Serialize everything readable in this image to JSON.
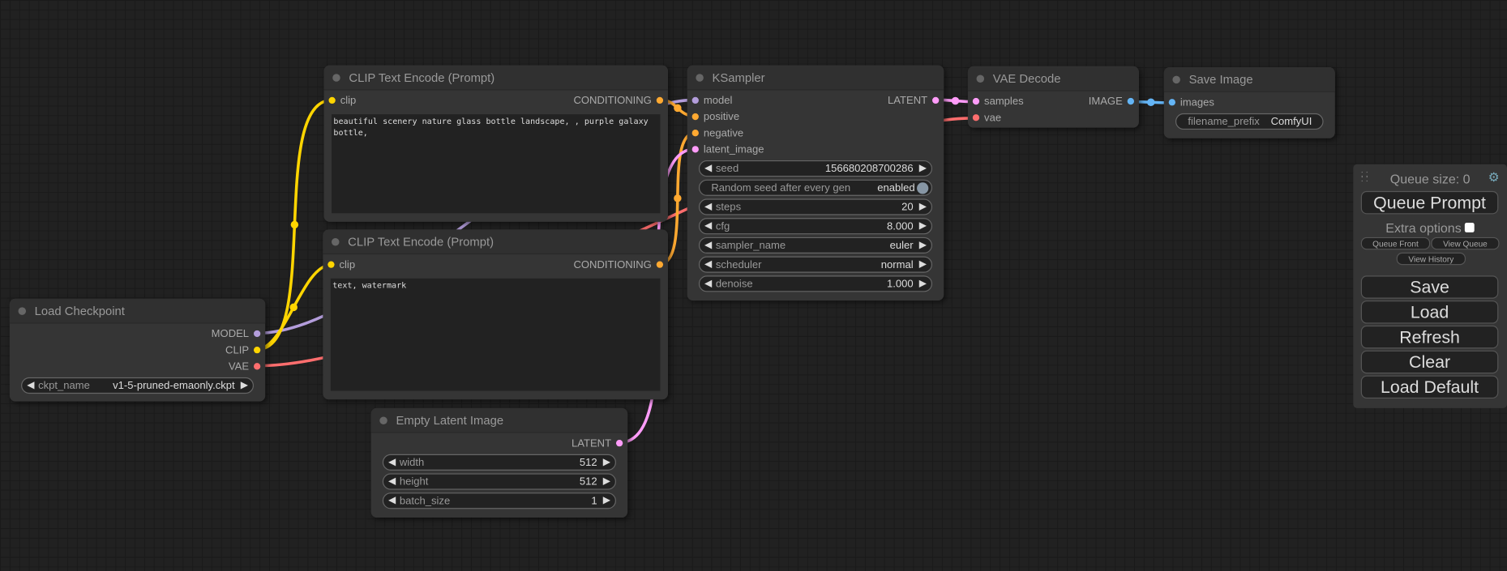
{
  "type_colors": {
    "MODEL": "#b39ddb",
    "CLIP": "#ffd500",
    "VAE": "#ff6e6e",
    "CONDITIONING": "#ffa931",
    "LATENT": "#ff9cf9",
    "IMAGE": "#64b5f6"
  },
  "nodes": [
    {
      "title": "Load Checkpoint",
      "rows": [
        {
          "out": {
            "label": "MODEL",
            "type": "MODEL"
          }
        },
        {
          "out": {
            "label": "CLIP",
            "type": "CLIP"
          }
        },
        {
          "out": {
            "label": "VAE",
            "type": "VAE"
          }
        }
      ],
      "widgets": [
        {
          "type": "combo",
          "label": "ckpt_name",
          "value": "v1-5-pruned-emaonly.ckpt"
        }
      ]
    },
    {
      "title": "CLIP Text Encode (Prompt)",
      "rows": [
        {
          "in": {
            "label": "clip",
            "type": "CLIP"
          },
          "out": {
            "label": "CONDITIONING",
            "type": "CONDITIONING"
          }
        }
      ],
      "widgets": [
        {
          "type": "text",
          "value": "beautiful scenery nature glass bottle landscape, , purple galaxy bottle,"
        }
      ]
    },
    {
      "title": "CLIP Text Encode (Prompt)",
      "rows": [
        {
          "in": {
            "label": "clip",
            "type": "CLIP"
          },
          "out": {
            "label": "CONDITIONING",
            "type": "CONDITIONING"
          }
        }
      ],
      "widgets": [
        {
          "type": "text",
          "value": "text, watermark"
        }
      ]
    },
    {
      "title": "KSampler",
      "rows": [
        {
          "in": {
            "label": "model",
            "type": "MODEL"
          },
          "out": {
            "label": "LATENT",
            "type": "LATENT"
          }
        },
        {
          "in": {
            "label": "positive",
            "type": "CONDITIONING"
          }
        },
        {
          "in": {
            "label": "negative",
            "type": "CONDITIONING"
          }
        },
        {
          "in": {
            "label": "latent_image",
            "type": "LATENT"
          }
        }
      ],
      "widgets": [
        {
          "type": "number",
          "label": "seed",
          "value": "156680208700286"
        },
        {
          "type": "toggle",
          "label": "Random seed after every gen",
          "value": "enabled"
        },
        {
          "type": "number",
          "label": "steps",
          "value": "20"
        },
        {
          "type": "number",
          "label": "cfg",
          "value": "8.000"
        },
        {
          "type": "combo",
          "label": "sampler_name",
          "value": "euler"
        },
        {
          "type": "combo",
          "label": "scheduler",
          "value": "normal"
        },
        {
          "type": "number",
          "label": "denoise",
          "value": "1.000"
        }
      ]
    },
    {
      "title": "VAE Decode",
      "rows": [
        {
          "in": {
            "label": "samples",
            "type": "LATENT"
          },
          "out": {
            "label": "IMAGE",
            "type": "IMAGE"
          }
        },
        {
          "in": {
            "label": "vae",
            "type": "VAE"
          }
        }
      ],
      "widgets": []
    },
    {
      "title": "Save Image",
      "rows": [
        {
          "in": {
            "label": "images",
            "type": "IMAGE"
          }
        }
      ],
      "widgets": [
        {
          "type": "string",
          "label": "filename_prefix",
          "value": "ComfyUI"
        }
      ]
    },
    {
      "title": "Empty Latent Image",
      "rows": [
        {
          "out": {
            "label": "LATENT",
            "type": "LATENT"
          }
        }
      ],
      "widgets": [
        {
          "type": "number",
          "label": "width",
          "value": "512"
        },
        {
          "type": "number",
          "label": "height",
          "value": "512"
        },
        {
          "type": "number",
          "label": "batch_size",
          "value": "1"
        }
      ]
    }
  ],
  "panel": {
    "queue_size": "Queue size: 0",
    "queue_prompt": "Queue Prompt",
    "extra_options": "Extra options",
    "queue_front": "Queue Front",
    "view_queue": "View Queue",
    "view_history": "View History",
    "save": "Save",
    "load": "Load",
    "refresh": "Refresh",
    "clear": "Clear",
    "load_default": "Load Default",
    "settings_icon": "gear-icon"
  }
}
